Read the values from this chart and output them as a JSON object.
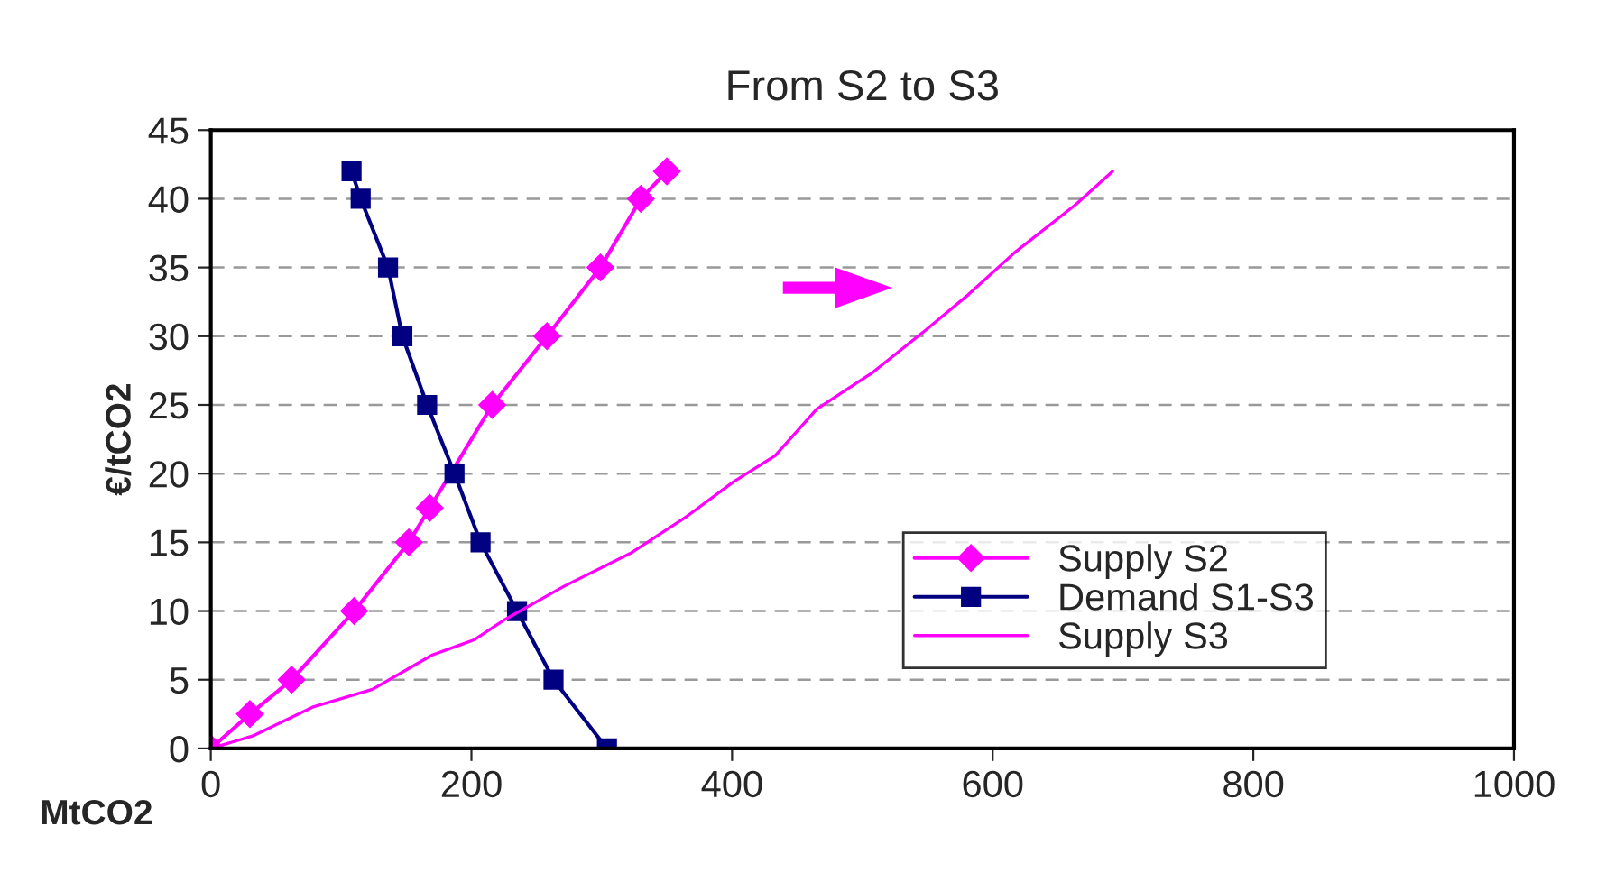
{
  "chart_data": {
    "type": "line",
    "title": "From S2 to S3",
    "xlabel": "MtCO2",
    "ylabel": "€/tCO2",
    "series": [
      {
        "name": "Supply S2",
        "color": "#ff00ff",
        "marker": "diamond",
        "x": [
          0,
          30,
          62,
          110,
          152,
          168,
          216,
          258,
          299,
          330,
          350
        ],
        "values": [
          0,
          2.5,
          5,
          10,
          15,
          17.5,
          25,
          30,
          35,
          40,
          42
        ]
      },
      {
        "name": "Demand S1-S3",
        "color": "#000080",
        "marker": "square",
        "x": [
          108,
          115,
          136,
          147,
          166,
          187,
          207,
          235,
          263,
          304
        ],
        "values": [
          42,
          40,
          35,
          30,
          25,
          20,
          15,
          10,
          5,
          0
        ]
      },
      {
        "name": "Supply S3",
        "color": "#ff00ff",
        "marker": "none",
        "x": [
          0,
          32,
          78,
          124,
          170,
          202,
          226,
          271,
          322,
          364,
          401,
          433,
          465,
          507,
          548,
          581,
          617,
          664,
          692
        ],
        "values": [
          0,
          0.9,
          3,
          4.3,
          6.8,
          7.9,
          9.4,
          11.8,
          14.2,
          16.8,
          19.4,
          21.3,
          24.7,
          27.3,
          30.4,
          33,
          36.1,
          39.6,
          42
        ]
      }
    ],
    "xlim": [
      0,
      1000
    ],
    "xticks": [
      0,
      200,
      400,
      600,
      800,
      1000
    ],
    "ylim": [
      0,
      45
    ],
    "yticks": [
      0,
      5,
      10,
      15,
      20,
      25,
      30,
      35,
      40,
      45
    ],
    "grid": "y",
    "legend": "lower right"
  }
}
